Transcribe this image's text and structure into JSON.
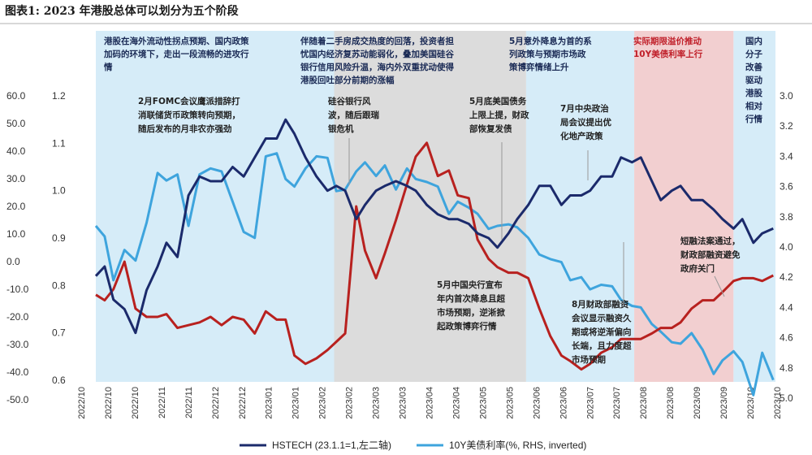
{
  "title": "图表1:   2023 年港股总体可以划分为五个阶段",
  "colors": {
    "hstech": "#1b2a6b",
    "yield": "#3ea4dd",
    "red_line": "#b8211f",
    "band_blue": "#d6ecf8",
    "band_gray": "#dcdcdc",
    "band_pink": "#f2cfd0"
  },
  "phases": [
    {
      "lines": [
        "港股在海外流动性拐点预期、国内政策",
        "加码的环境下，走出一段流畅的进攻行",
        "情"
      ]
    },
    {
      "lines": [
        "伴随着二手房成交热度的回落，投资者担",
        "忧国内经济复苏动能弱化，叠加美国硅谷",
        "银行信用风险升温，海内外双重扰动使得",
        "港股回吐部分前期的涨幅"
      ]
    },
    {
      "lines": [
        "5月意外降息为首的系",
        "列政策与预期市场政",
        "策博弈情绪上升"
      ]
    },
    {
      "lines": [
        "实际期限溢价推动",
        "10Y美债利率上行"
      ]
    },
    {
      "lines": [
        "国内",
        "分子",
        "改善",
        "驱动",
        "港股",
        "相对",
        "行情"
      ]
    }
  ],
  "annotations": [
    {
      "lines": [
        "2月FOMC会议鹰派措辞打",
        "消联储货币政策转向预期，",
        "随后发布的月非农亦强劲"
      ]
    },
    {
      "lines": [
        "硅谷银行风",
        "波，随后跟瑞",
        "银危机"
      ]
    },
    {
      "lines": [
        "5月底美国债务",
        "上限上提，财政",
        "部恢复发债"
      ]
    },
    {
      "lines": [
        "7月中央政治",
        "局会议提出优",
        "化地产政策"
      ]
    },
    {
      "lines": [
        "5月中国央行宣布",
        "年内首次降息且超",
        "市场预期，逆淅掀",
        "起政策博弈行情"
      ]
    },
    {
      "lines": [
        "短融法案通过，",
        "财政部融资避免",
        "政府关门"
      ]
    },
    {
      "lines": [
        "8月财政部融资",
        "会议显示融资久",
        "期或将逆渐偏向",
        "长端，且力度超",
        "市场预期"
      ]
    }
  ],
  "legend": {
    "hstech": "HSTECH (23.1.1=1,左二轴)",
    "yield": "10Y美债利率(%, RHS, inverted)"
  },
  "chart_data": {
    "type": "line",
    "x_labels": [
      "2022/10",
      "2022/10",
      "2022/10",
      "2022/11",
      "2022/11",
      "2022/12",
      "2022/12",
      "2023/01",
      "2023/01",
      "2023/02",
      "2023/02",
      "2023/03",
      "2023/03",
      "2023/04",
      "2023/04",
      "2023/05",
      "2023/05",
      "2023/06",
      "2023/06",
      "2023/07",
      "2023/07",
      "2023/08",
      "2023/08",
      "2023/09",
      "2023/09",
      "2023/10",
      "2023/10"
    ],
    "y_left_outer": {
      "ticks": [
        "60.0",
        "50.0",
        "40.0",
        "30.0",
        "20.0",
        "10.0",
        "0.0",
        "-10.0",
        "-20.0",
        "-30.0",
        "-40.0",
        "-50.0"
      ],
      "range": [
        -50,
        60
      ]
    },
    "y_left_inner": {
      "ticks": [
        "1.2",
        "1.1",
        "1.0",
        "0.9",
        "0.8",
        "0.7",
        "0.6"
      ],
      "range": [
        0.6,
        1.2
      ]
    },
    "y_right": {
      "ticks": [
        "3.0",
        "3.2",
        "3.4",
        "3.6",
        "3.8",
        "4.0",
        "4.2",
        "4.4",
        "4.6",
        "4.8",
        "5.0"
      ],
      "range": [
        3.0,
        5.0
      ],
      "inverted": true
    },
    "bands": [
      {
        "from": 0,
        "to": 10.8,
        "kind": "blue"
      },
      {
        "from": 10.8,
        "to": 19.5,
        "kind": "gray"
      },
      {
        "from": 19.5,
        "to": 24.4,
        "kind": "blue"
      },
      {
        "from": 24.4,
        "to": 28.9,
        "kind": "pink"
      },
      {
        "from": 28.9,
        "to": 30.8,
        "kind": "blue"
      }
    ],
    "series": [
      {
        "name": "HSTECH (23.1.1=1,左二轴)",
        "axis": "left_inner",
        "x": [
          0,
          0.4,
          0.8,
          1.3,
          1.8,
          2.3,
          2.8,
          3.2,
          3.7,
          4.2,
          4.7,
          5.2,
          5.7,
          6.2,
          6.7,
          7.2,
          7.7,
          8.2,
          8.6,
          9.0,
          9.5,
          10.0,
          10.5,
          10.9,
          11.3,
          11.8,
          12.2,
          12.7,
          13.1,
          13.6,
          14.1,
          14.5,
          15.0,
          15.5,
          16.0,
          16.4,
          16.9,
          17.3,
          17.8,
          18.2,
          18.7,
          19.1,
          19.6,
          20.1,
          20.6,
          21.1,
          21.5,
          22.0,
          22.4,
          22.9,
          23.4,
          23.8,
          24.3,
          24.7,
          25.2,
          25.6,
          26.1,
          26.5,
          27.0,
          27.5,
          28.0,
          28.4,
          28.9,
          29.3,
          29.8,
          30.2,
          30.7
        ],
        "y": [
          0.82,
          0.84,
          0.77,
          0.75,
          0.7,
          0.79,
          0.84,
          0.89,
          0.86,
          0.99,
          1.03,
          1.02,
          1.02,
          1.05,
          1.03,
          1.07,
          1.11,
          1.11,
          1.15,
          1.12,
          1.07,
          1.03,
          1.0,
          1.01,
          1.0,
          0.94,
          0.97,
          1.0,
          1.01,
          1.02,
          1.01,
          1.0,
          0.97,
          0.95,
          0.94,
          0.94,
          0.93,
          0.91,
          0.9,
          0.88,
          0.91,
          0.94,
          0.97,
          1.01,
          1.01,
          0.97,
          0.99,
          0.99,
          1.0,
          1.03,
          1.03,
          1.07,
          1.06,
          1.07,
          1.02,
          0.98,
          1.0,
          1.01,
          0.98,
          0.98,
          0.96,
          0.94,
          0.92,
          0.94,
          0.89,
          0.91,
          0.92
        ]
      },
      {
        "name": "10Y美债利率(%, RHS, inverted)",
        "axis": "right",
        "x": [
          0,
          0.4,
          0.8,
          1.3,
          1.8,
          2.3,
          2.8,
          3.2,
          3.7,
          4.2,
          4.7,
          5.2,
          5.7,
          6.2,
          6.7,
          7.2,
          7.7,
          8.2,
          8.6,
          9.0,
          9.5,
          10.0,
          10.5,
          10.9,
          11.3,
          11.8,
          12.2,
          12.7,
          13.1,
          13.6,
          14.1,
          14.5,
          15.0,
          15.5,
          16.0,
          16.4,
          16.9,
          17.3,
          17.8,
          18.2,
          18.7,
          19.1,
          19.6,
          20.1,
          20.6,
          21.1,
          21.5,
          22.0,
          22.4,
          22.9,
          23.4,
          23.8,
          24.3,
          24.7,
          25.2,
          25.6,
          26.1,
          26.5,
          27.0,
          27.5,
          28.0,
          28.4,
          28.9,
          29.3,
          29.8,
          30.2,
          30.7
        ],
        "y": [
          3.86,
          3.93,
          4.22,
          4.02,
          4.09,
          3.84,
          3.51,
          3.56,
          3.52,
          3.86,
          3.52,
          3.48,
          3.5,
          3.7,
          3.9,
          3.94,
          3.4,
          3.38,
          3.55,
          3.6,
          3.48,
          3.4,
          3.41,
          3.63,
          3.62,
          3.5,
          3.44,
          3.53,
          3.46,
          3.62,
          3.48,
          3.55,
          3.57,
          3.6,
          3.78,
          3.7,
          3.74,
          3.78,
          3.88,
          3.86,
          3.85,
          3.87,
          3.94,
          4.05,
          4.08,
          4.1,
          4.22,
          4.2,
          4.28,
          4.25,
          4.26,
          4.35,
          4.39,
          4.4,
          4.51,
          4.56,
          4.63,
          4.64,
          4.57,
          4.68,
          4.84,
          4.75,
          4.69,
          4.76,
          4.98,
          4.7,
          4.88
        ]
      },
      {
        "name": "",
        "axis": "left_outer",
        "x": [
          0,
          0.4,
          0.8,
          1.3,
          1.8,
          2.3,
          2.8,
          3.2,
          3.7,
          4.2,
          4.7,
          5.2,
          5.7,
          6.2,
          6.7,
          7.2,
          7.7,
          8.2,
          8.6,
          9.0,
          9.5,
          10.0,
          10.5,
          10.9,
          11.3,
          11.8,
          12.2,
          12.7,
          13.1,
          13.6,
          14.1,
          14.5,
          15.0,
          15.5,
          16.0,
          16.4,
          16.9,
          17.3,
          17.8,
          18.2,
          18.7,
          19.1,
          19.6,
          20.1,
          20.6,
          21.1,
          21.5,
          22.0,
          22.4,
          22.9,
          23.4,
          23.8,
          24.3,
          24.7,
          25.2,
          25.6,
          26.1,
          26.5,
          27.0,
          27.5,
          28.0,
          28.4,
          28.9,
          29.3,
          29.8,
          30.2,
          30.7
        ],
        "y": [
          -12,
          -14,
          -10,
          0,
          -17,
          -20,
          -20,
          -19,
          -24,
          -23,
          -22,
          -20,
          -23,
          -20,
          -21,
          -26,
          -18,
          -21,
          -21,
          -34,
          -37,
          -35,
          -32,
          -29,
          -26,
          20,
          4,
          -6,
          3,
          15,
          28,
          38,
          43,
          31,
          33,
          24,
          23,
          8,
          1,
          -2,
          -4,
          -4,
          -6,
          -17,
          -27,
          -34,
          -36,
          -39,
          -37,
          -33,
          -31,
          -28,
          -28,
          -28,
          -26,
          -24,
          -24,
          -22,
          -17,
          -14,
          -14,
          -11,
          -7,
          -6,
          -6,
          -7,
          -5
        ]
      }
    ]
  }
}
